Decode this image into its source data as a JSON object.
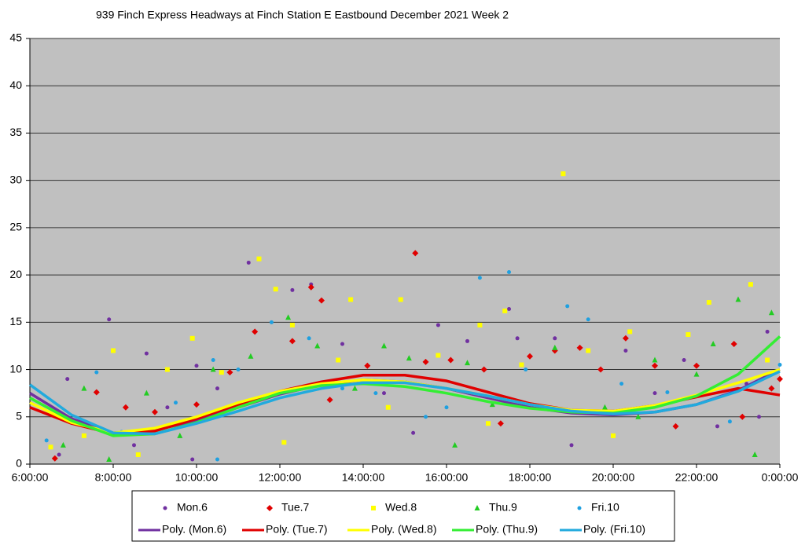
{
  "chart_data": {
    "type": "scatter",
    "title": "939 Finch Express Headways at Finch Station E Eastbound December 2021  Week 2",
    "xlim": [
      6,
      24
    ],
    "xticks": [
      {
        "value": 6,
        "label": "6:00:00"
      },
      {
        "value": 8,
        "label": "8:00:00"
      },
      {
        "value": 10,
        "label": "10:00:00"
      },
      {
        "value": 12,
        "label": "12:00:00"
      },
      {
        "value": 14,
        "label": "14:00:00"
      },
      {
        "value": 16,
        "label": "16:00:00"
      },
      {
        "value": 18,
        "label": "18:00:00"
      },
      {
        "value": 20,
        "label": "20:00:00"
      },
      {
        "value": 22,
        "label": "22:00:00"
      },
      {
        "value": 24,
        "label": "0:00:00"
      }
    ],
    "ylim": [
      0,
      45
    ],
    "yticks": [
      0,
      5,
      10,
      15,
      20,
      25,
      30,
      35,
      40,
      45
    ],
    "grid": true,
    "background": "#c0c0c0",
    "series": [
      {
        "name": "Mon.6",
        "color": "#7030a0",
        "marker": "circle",
        "x": [
          7.9,
          11.25,
          12.3,
          12.75,
          8.8,
          10,
          13.5,
          15.8,
          17.5,
          17.7,
          19.4,
          21.7,
          23.7,
          6.9,
          7.5,
          8.5,
          9.3,
          10.5,
          14.5,
          16.5,
          18.6,
          20.3,
          22.5,
          23.2,
          6.7,
          9.9,
          15.2,
          19.0,
          21.0,
          23.5
        ],
        "values": [
          15.3,
          21.3,
          18.4,
          19.0,
          11.7,
          10.4,
          12.7,
          14.7,
          16.4,
          13.3,
          12.0,
          11.0,
          14.0,
          9.0,
          4.0,
          2.0,
          6.0,
          8.0,
          7.5,
          13.0,
          13.3,
          12.0,
          4.0,
          8.5,
          1.0,
          0.5,
          3.3,
          2.0,
          7.5,
          5.0
        ]
      },
      {
        "name": "Tue.7",
        "color": "#e00000",
        "marker": "diamond",
        "x": [
          15.25,
          12.75,
          13.0,
          11.4,
          12.3,
          18.6,
          19.2,
          20.3,
          22.0,
          22.9,
          23.1,
          6.6,
          7.6,
          8.3,
          9.0,
          10.0,
          10.8,
          13.2,
          14.1,
          15.5,
          16.1,
          16.9,
          17.3,
          18.0,
          19.7,
          21.0,
          21.5,
          23.8,
          24
        ],
        "values": [
          22.3,
          18.7,
          17.3,
          14.0,
          13.0,
          12.0,
          12.3,
          13.3,
          10.4,
          12.7,
          5.0,
          0.6,
          7.6,
          6.0,
          5.5,
          6.3,
          9.7,
          6.8,
          10.4,
          10.8,
          11.0,
          10.0,
          4.3,
          11.4,
          10.0,
          10.4,
          4.0,
          8.0,
          9.0
        ]
      },
      {
        "name": "Wed.8",
        "color": "#ffff00",
        "marker": "square",
        "x": [
          18.8,
          11.5,
          11.9,
          12.3,
          13.7,
          14.9,
          16.8,
          17.4,
          22.3,
          23.3,
          9.9,
          8.0,
          9.3,
          10.6,
          7.3,
          8.6,
          12.1,
          13.4,
          15.8,
          17.8,
          19.4,
          20.4,
          21.8,
          23.7,
          6.5,
          14.6,
          17.0,
          20.0
        ],
        "values": [
          30.7,
          21.7,
          18.5,
          14.7,
          17.4,
          17.4,
          14.7,
          16.2,
          17.1,
          19.0,
          13.3,
          12.0,
          10.0,
          9.7,
          3.0,
          1.0,
          2.3,
          11.0,
          11.5,
          10.5,
          12.0,
          14.0,
          13.7,
          11.0,
          1.8,
          6.0,
          4.3,
          3.0
        ]
      },
      {
        "name": "Thu.9",
        "color": "#22cc22",
        "marker": "triangle",
        "x": [
          12.2,
          23.0,
          23.8,
          11.3,
          12.9,
          14.5,
          16.5,
          18.6,
          21.0,
          22.4,
          6.8,
          7.3,
          8.8,
          9.6,
          10.4,
          13.8,
          15.1,
          16.2,
          17.1,
          19.8,
          20.6,
          22.0,
          23.4,
          7.9
        ],
        "values": [
          15.5,
          17.4,
          16.0,
          11.4,
          12.5,
          12.5,
          10.7,
          12.3,
          11.0,
          12.7,
          2.0,
          8.0,
          7.5,
          3.0,
          10.0,
          8.0,
          11.2,
          2.0,
          6.3,
          6.0,
          5.0,
          9.5,
          1.0,
          0.5
        ]
      },
      {
        "name": "Fri.10",
        "color": "#1fa0e0",
        "marker": "circle",
        "x": [
          16.8,
          17.5,
          18.9,
          11.8,
          12.7,
          19.4,
          24,
          6.4,
          7.6,
          8.2,
          9.5,
          10.4,
          11.0,
          13.5,
          14.3,
          15.5,
          17.9,
          20.2,
          21.3,
          22.8,
          10.5,
          16.0
        ],
        "values": [
          19.7,
          20.3,
          16.7,
          15.0,
          13.3,
          15.3,
          10.5,
          2.5,
          9.7,
          3.4,
          6.5,
          11.0,
          10.0,
          8.0,
          7.5,
          5.0,
          10.0,
          8.5,
          7.6,
          4.5,
          0.5,
          6.0
        ]
      }
    ],
    "trend_x": [
      6,
      7,
      8,
      9,
      10,
      11,
      12,
      13,
      14,
      15,
      16,
      17,
      18,
      19,
      20,
      21,
      22,
      23,
      24
    ],
    "trendlines": [
      {
        "name": "Poly. (Mon.6)",
        "color": "#7030a0",
        "values": [
          7.5,
          4.8,
          3.3,
          3.6,
          4.6,
          6.0,
          7.4,
          8.4,
          8.9,
          8.7,
          8.0,
          7.0,
          6.0,
          5.4,
          5.2,
          5.5,
          6.3,
          7.8,
          10.0
        ]
      },
      {
        "name": "Poly. (Tue.7)",
        "color": "#e00000",
        "values": [
          6.0,
          4.3,
          3.2,
          3.5,
          4.8,
          6.3,
          7.7,
          8.7,
          9.4,
          9.4,
          8.8,
          7.6,
          6.4,
          5.7,
          5.6,
          6.2,
          7.1,
          8.0,
          7.3
        ]
      },
      {
        "name": "Poly. (Wed.8)",
        "color": "#ffff00",
        "values": [
          6.5,
          4.4,
          3.3,
          3.8,
          5.0,
          6.5,
          7.7,
          8.5,
          8.9,
          8.7,
          8.0,
          7.2,
          6.3,
          5.7,
          5.6,
          6.2,
          7.3,
          8.6,
          10.0
        ]
      },
      {
        "name": "Poly. (Thu.9)",
        "color": "#33ee33",
        "values": [
          7.0,
          4.6,
          3.0,
          3.2,
          4.4,
          6.0,
          7.5,
          8.3,
          8.5,
          8.2,
          7.5,
          6.6,
          5.9,
          5.5,
          5.4,
          6.0,
          7.2,
          9.5,
          13.5
        ]
      },
      {
        "name": "Poly. (Fri.10)",
        "color": "#22aadd",
        "values": [
          8.4,
          5.2,
          3.3,
          3.2,
          4.3,
          5.6,
          7.0,
          8.0,
          8.6,
          8.6,
          8.0,
          7.2,
          6.3,
          5.6,
          5.3,
          5.5,
          6.3,
          7.7,
          9.8
        ]
      }
    ]
  }
}
